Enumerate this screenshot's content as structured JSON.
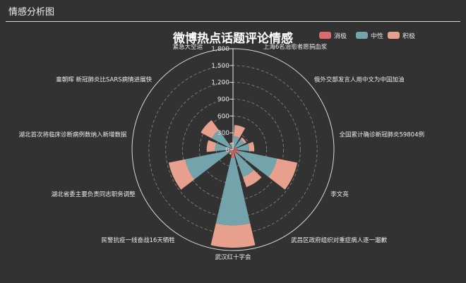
{
  "header": {
    "title": "情感分析图"
  },
  "colors": {
    "negative": "#d96c6c",
    "neutral": "#74a4ab",
    "positive": "#e8a08e",
    "background": "#323232"
  },
  "chart_data": {
    "type": "polar-stacked-bar",
    "title": "微博热点话题评论情感",
    "legend": {
      "position": "top-right"
    },
    "legend_entries": [
      "消极",
      "中性",
      "积极"
    ],
    "radius_axis": {
      "min": 0,
      "max": 1800,
      "ticks": [
        0,
        300,
        600,
        900,
        1200,
        1500,
        1800
      ],
      "tick_labels": [
        "0",
        "300",
        "600",
        "900",
        "1,200",
        "1,500",
        "1,800"
      ]
    },
    "categories": [
      "上海6名治愈者愿捐血浆",
      "俄外交部发言人用中文为中国加油",
      "全国累计确诊新冠肺炎59804例",
      "李文亮",
      "武昌区政府组织对重症病人逐一遛歉",
      "武汉红十字会",
      "民警抗疫一线奋战16天牺牲",
      "湖北省委主要负责同志职务调整",
      "湖北首次将临床诊断病例数纳入新增数据",
      "童朝晖 新冠肺炎比SARS病情进展快",
      "紧急大空运"
    ],
    "series": [
      {
        "name": "消极",
        "values": [
          40,
          60,
          80,
          110,
          90,
          150,
          30,
          100,
          40,
          50,
          40
        ]
      },
      {
        "name": "中性",
        "values": [
          200,
          170,
          210,
          690,
          430,
          1200,
          40,
          770,
          280,
          380,
          60
        ]
      },
      {
        "name": "积极",
        "values": [
          200,
          40,
          90,
          370,
          190,
          400,
          30,
          300,
          150,
          220,
          30
        ]
      }
    ],
    "grid": true
  }
}
